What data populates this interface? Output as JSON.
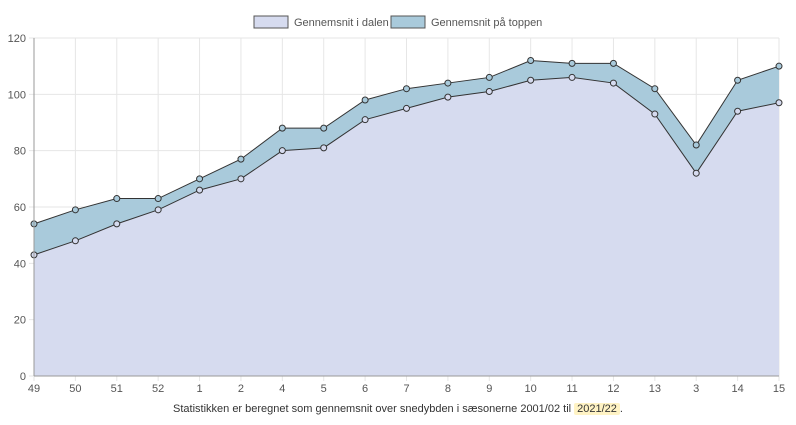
{
  "chart_data": {
    "type": "area",
    "categories": [
      "49",
      "50",
      "51",
      "52",
      "1",
      "2",
      "4",
      "5",
      "6",
      "7",
      "8",
      "9",
      "10",
      "11",
      "12",
      "13",
      "3",
      "14",
      "15"
    ],
    "series": [
      {
        "name": "Gennemsnit i dalen",
        "values": [
          43,
          48,
          54,
          59,
          66,
          70,
          80,
          81,
          91,
          95,
          99,
          101,
          105,
          106,
          104,
          93,
          72,
          94,
          97
        ]
      },
      {
        "name": "Gennemsnit på toppen",
        "values": [
          54,
          59,
          63,
          63,
          70,
          77,
          88,
          88,
          98,
          102,
          104,
          106,
          112,
          111,
          111,
          102,
          82,
          105,
          110
        ]
      }
    ],
    "ylim": [
      0,
      120
    ],
    "yticks": [
      "0",
      "20",
      "40",
      "60",
      "80",
      "100",
      "120"
    ],
    "grid": true,
    "legend": "top",
    "colors": {
      "dalen_fill": "#d6dbef",
      "toppen_fill": "#a9cadb",
      "line": "#333333",
      "grid": "#e6e6e6"
    }
  },
  "caption": {
    "text": "Statistikken er beregnet som gennemsnit over snedybden i sæsonerne 2001/02 til ",
    "highlight": "2021/22",
    "suffix": "."
  }
}
